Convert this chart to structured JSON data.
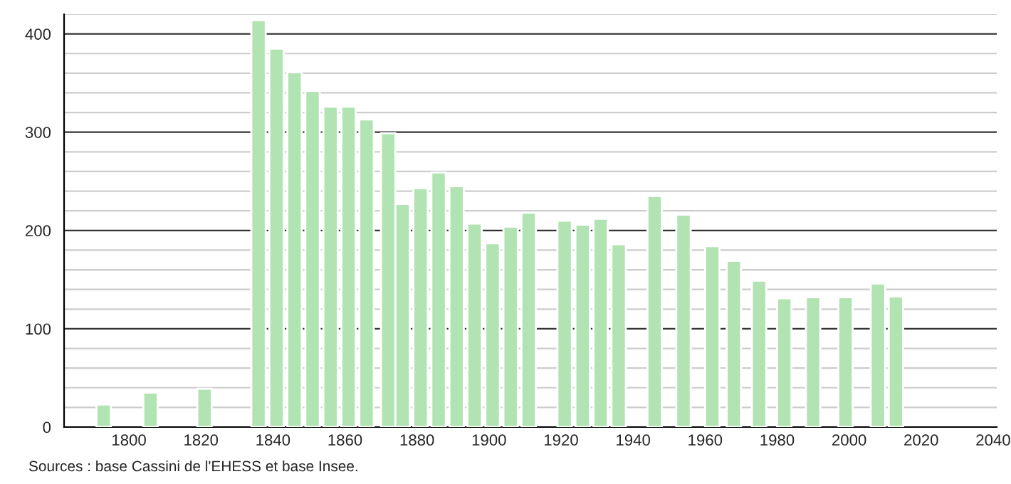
{
  "chart_data": {
    "type": "bar",
    "x": [
      1793,
      1806,
      1821,
      1836,
      1841,
      1846,
      1851,
      1856,
      1861,
      1866,
      1872,
      1876,
      1881,
      1886,
      1891,
      1896,
      1901,
      1906,
      1911,
      1921,
      1926,
      1931,
      1936,
      1946,
      1954,
      1962,
      1968,
      1975,
      1982,
      1990,
      1999,
      2008,
      2013
    ],
    "values": [
      23,
      35,
      39,
      414,
      385,
      361,
      342,
      326,
      326,
      313,
      299,
      227,
      243,
      259,
      245,
      207,
      187,
      204,
      218,
      210,
      206,
      212,
      186,
      235,
      216,
      184,
      169,
      149,
      131,
      132,
      132,
      146,
      133
    ],
    "color": "#b2e3b2",
    "xlim": [
      1782,
      2041
    ],
    "xticks": [
      1800,
      1820,
      1840,
      1860,
      1880,
      1900,
      1920,
      1940,
      1960,
      1980,
      2000,
      2020,
      2040
    ],
    "ylim": [
      0,
      420
    ],
    "yticks": [
      0,
      {
        "value": 20,
        "label": null
      },
      {
        "value": 40,
        "label": null
      },
      {
        "value": 60,
        "label": null
      },
      {
        "value": 80,
        "label": null
      },
      100,
      {
        "value": 120,
        "label": null
      },
      {
        "value": 140,
        "label": null
      },
      {
        "value": 160,
        "label": null
      },
      {
        "value": 180,
        "label": null
      },
      200,
      {
        "value": 220,
        "label": null
      },
      {
        "value": 240,
        "label": null
      },
      {
        "value": 260,
        "label": null
      },
      {
        "value": 280,
        "label": null
      },
      300,
      {
        "value": 320,
        "label": null
      },
      {
        "value": 340,
        "label": null
      },
      {
        "value": 360,
        "label": null
      },
      {
        "value": 380,
        "label": null
      },
      400,
      {
        "value": 420,
        "label": null
      }
    ],
    "grid": "y",
    "annotations": [
      "Sources : base Cassini de l'EHESS et base Insee."
    ]
  }
}
